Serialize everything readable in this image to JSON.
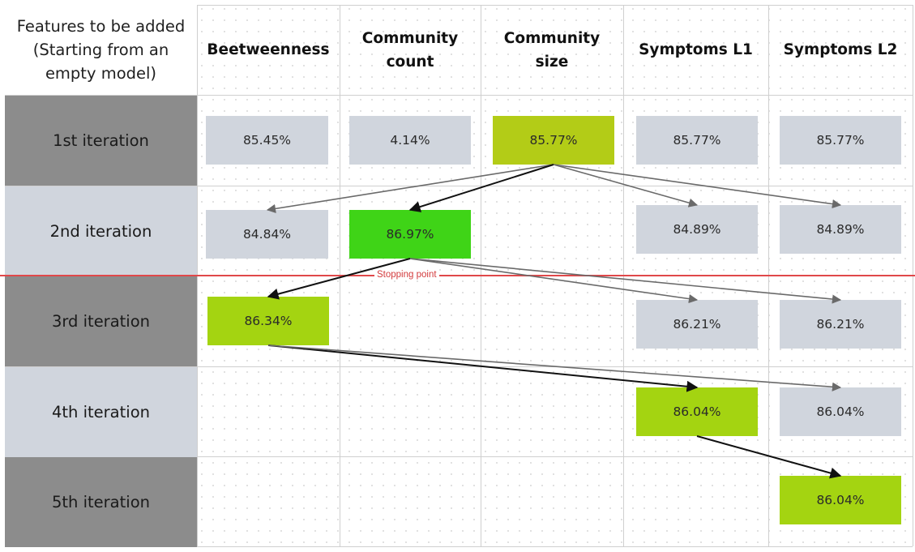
{
  "header": {
    "corner_label": "Features to be added\n(Starting from an\nempty model)",
    "columns": [
      "Beetweenness",
      "Community\ncount",
      "Community\nsize",
      "Symptoms L1",
      "Symptoms L2"
    ]
  },
  "rows": [
    "1st iteration",
    "2nd iteration",
    "3rd iteration",
    "4th iteration",
    "5th iteration"
  ],
  "cells": {
    "r1_beetweenness": "85.45%",
    "r1_community_count": "4.14%",
    "r1_community_size": "85.77%",
    "r1_symptoms_l1": "85.77%",
    "r1_symptoms_l2": "85.77%",
    "r2_beetweenness": "84.84%",
    "r2_community_count": "86.97%",
    "r2_symptoms_l1": "84.89%",
    "r2_symptoms_l2": "84.89%",
    "r3_beetweenness": "86.34%",
    "r3_symptoms_l1": "86.21%",
    "r3_symptoms_l2": "86.21%",
    "r4_symptoms_l1": "86.04%",
    "r4_symptoms_l2": "86.04%",
    "r5_symptoms_l2": "86.04%"
  },
  "stopping_point": "Stopping point",
  "colors": {
    "unselected": "#d0d5dd",
    "selected_lime": "#b3cc17",
    "selected_bright": "#3fd417",
    "selected_yellowgreen": "#a4d411",
    "row_dark": "#8c8c8c",
    "row_light": "#d0d5dd",
    "stop_line": "#e0484a",
    "chosen_arrow": "#111111",
    "other_arrow": "#6a6a6a"
  }
}
